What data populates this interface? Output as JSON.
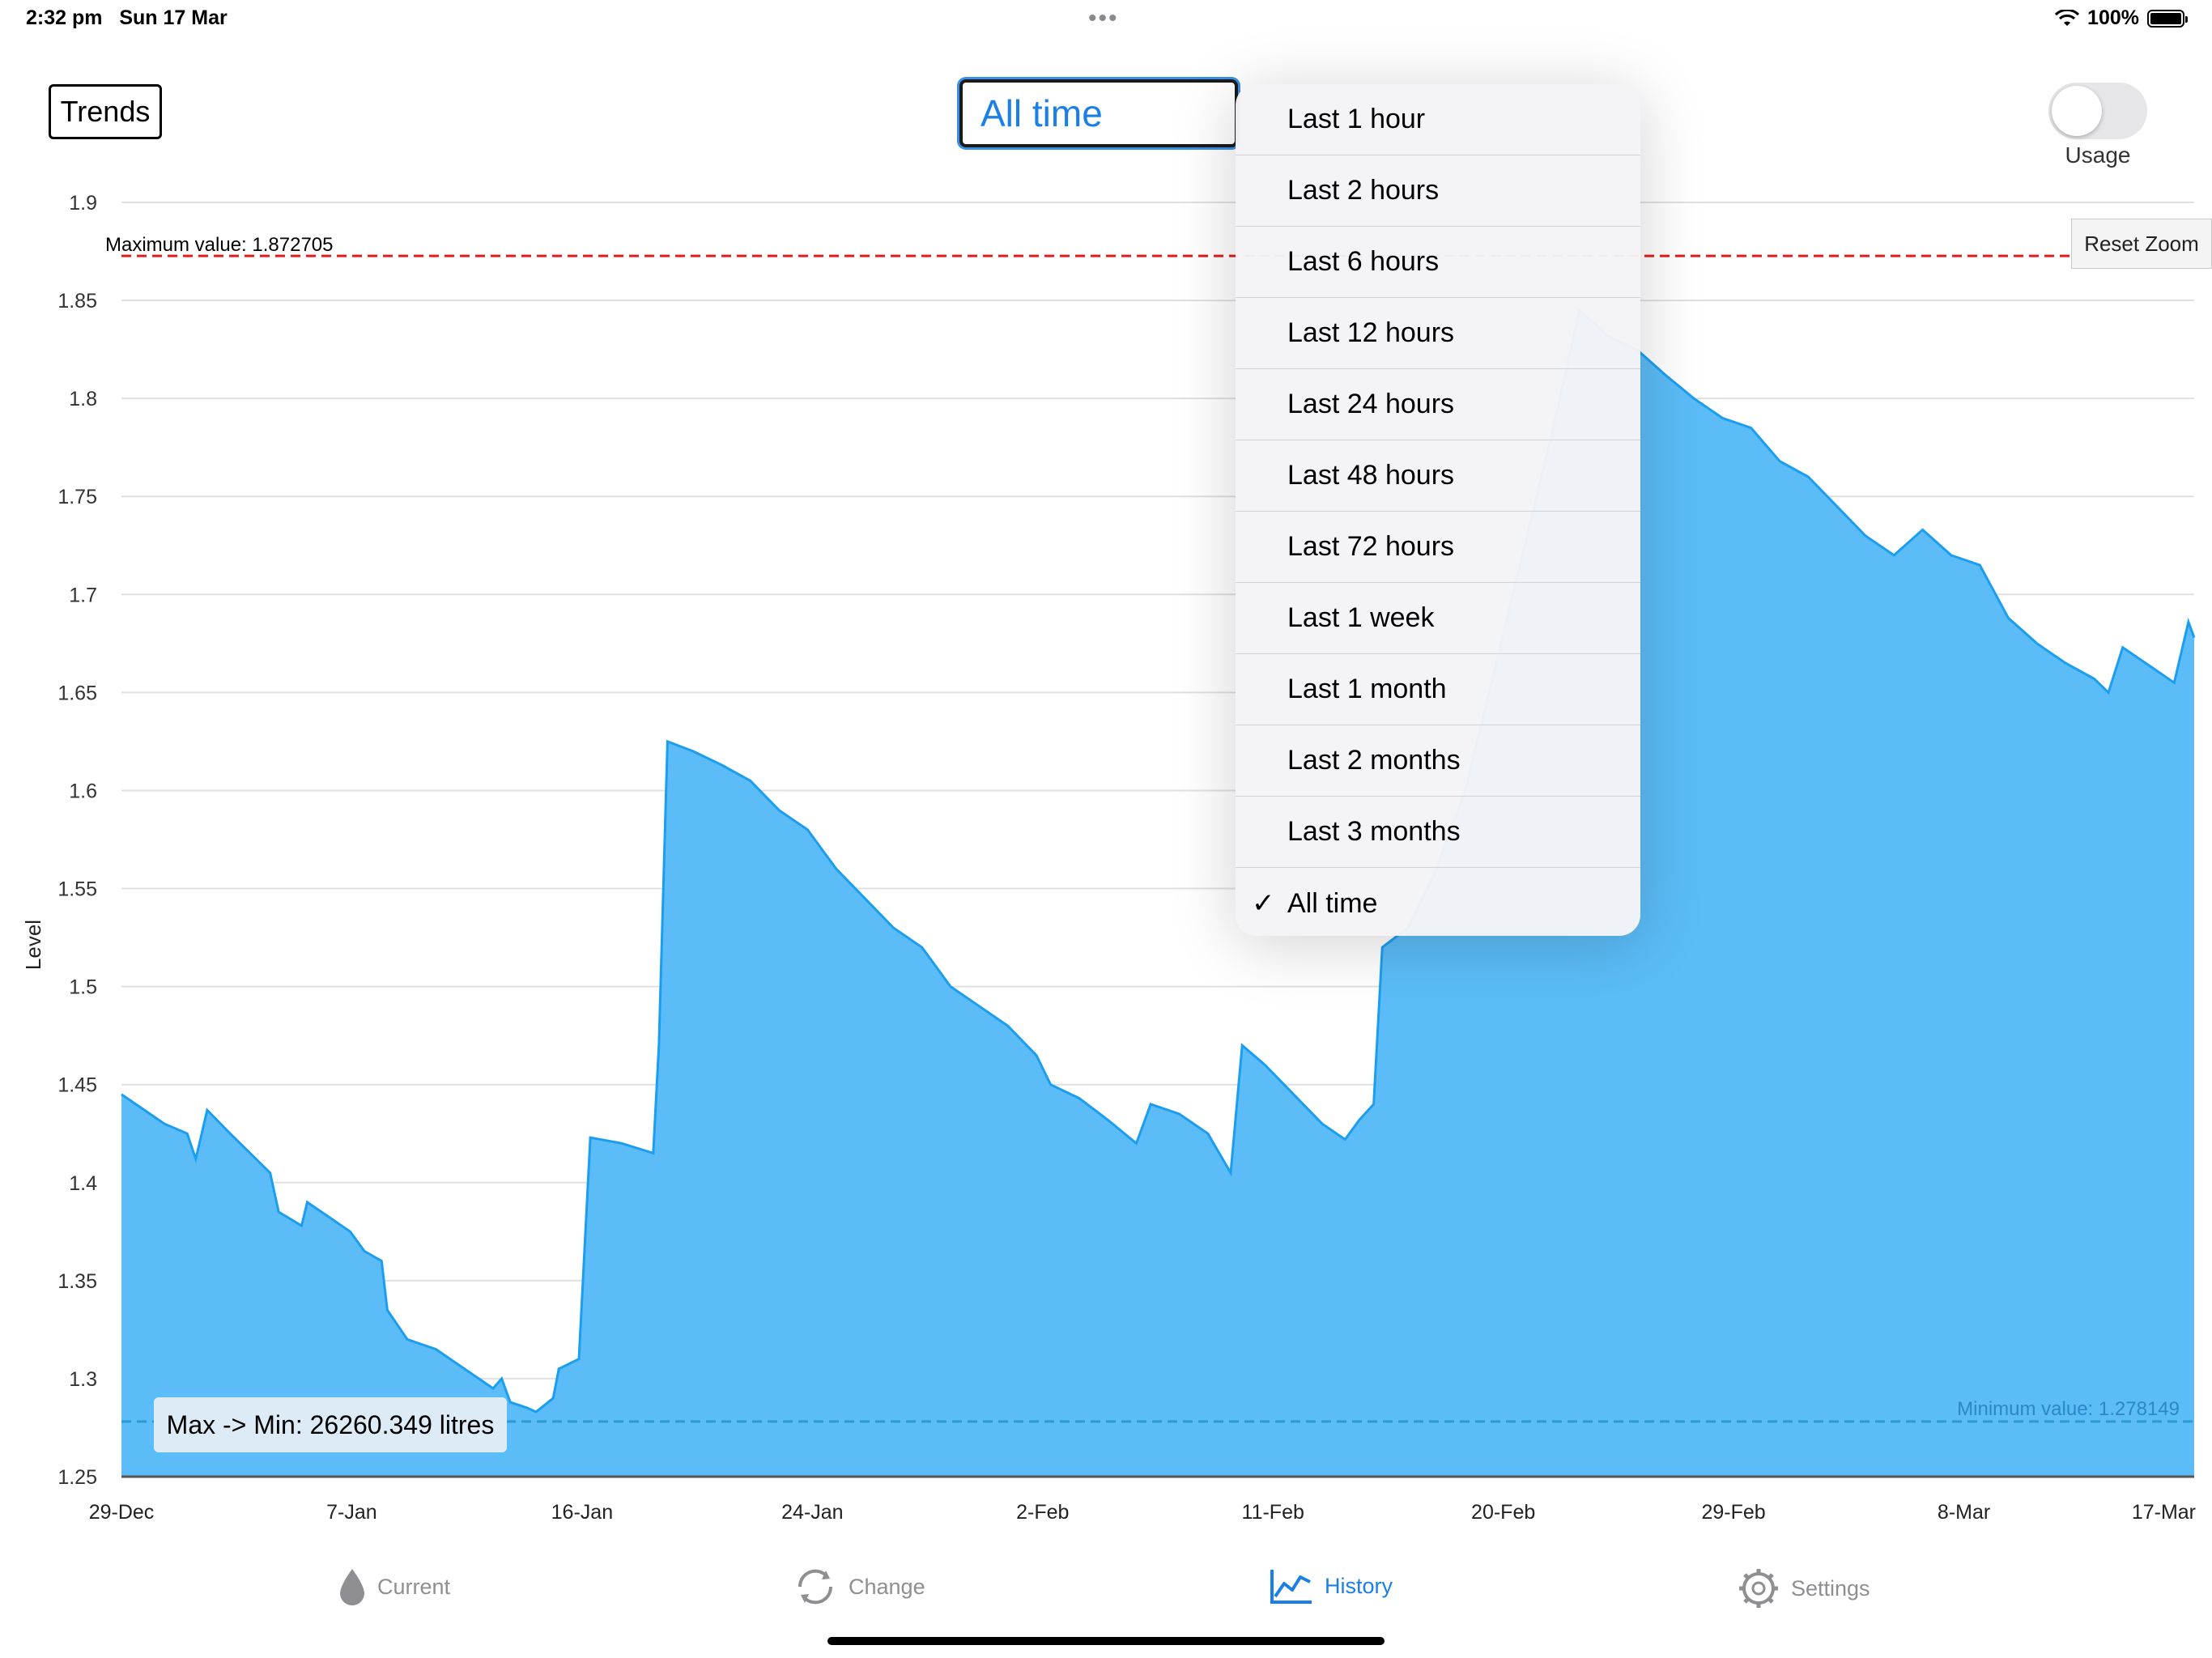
{
  "status_bar": {
    "time": "2:32 pm",
    "date": "Sun 17 Mar",
    "dots": "•••",
    "battery": "100%"
  },
  "header": {
    "trends_label": "Trends",
    "range_selected": "All time",
    "usage_label": "Usage",
    "reset_zoom_label": "Reset Zoom"
  },
  "dropdown": {
    "items": [
      {
        "label": "Last 1 hour",
        "checked": ""
      },
      {
        "label": "Last 2 hours",
        "checked": ""
      },
      {
        "label": "Last 6 hours",
        "checked": ""
      },
      {
        "label": "Last 12 hours",
        "checked": ""
      },
      {
        "label": "Last 24 hours",
        "checked": ""
      },
      {
        "label": "Last 48 hours",
        "checked": ""
      },
      {
        "label": "Last 72 hours",
        "checked": ""
      },
      {
        "label": "Last 1 week",
        "checked": ""
      },
      {
        "label": "Last 1 month",
        "checked": ""
      },
      {
        "label": "Last 2 months",
        "checked": ""
      },
      {
        "label": "Last 3 months",
        "checked": ""
      },
      {
        "label": "All time",
        "checked": "✓"
      }
    ]
  },
  "chart_data": {
    "type": "area",
    "ylabel": "Level",
    "xlabel": "",
    "ylim": [
      1.25,
      1.9
    ],
    "yticks": [
      "1.9",
      "1.85",
      "1.8",
      "1.75",
      "1.7",
      "1.65",
      "1.6",
      "1.55",
      "1.5",
      "1.45",
      "1.4",
      "1.35",
      "1.3",
      "1.25"
    ],
    "xticks": [
      "29-Dec",
      "7-Jan",
      "16-Jan",
      "24-Jan",
      "2-Feb",
      "11-Feb",
      "20-Feb",
      "29-Feb",
      "8-Mar",
      "17-Mar"
    ],
    "max_label": "Maximum value: 1.872705",
    "max_value": 1.872705,
    "min_label": "Minimum value: 1.278149",
    "min_value": 1.278149,
    "color": "#5bbcf7",
    "line_color": "#1b9ef0",
    "series": [
      {
        "x": 0,
        "y": 1.445
      },
      {
        "x": 0.5,
        "y": 1.44
      },
      {
        "x": 1.5,
        "y": 1.43
      },
      {
        "x": 2.3,
        "y": 1.425
      },
      {
        "x": 2.6,
        "y": 1.412
      },
      {
        "x": 3,
        "y": 1.437
      },
      {
        "x": 3.8,
        "y": 1.425
      },
      {
        "x": 4.5,
        "y": 1.415
      },
      {
        "x": 5.2,
        "y": 1.405
      },
      {
        "x": 5.5,
        "y": 1.385
      },
      {
        "x": 6.3,
        "y": 1.378
      },
      {
        "x": 6.5,
        "y": 1.39
      },
      {
        "x": 7.2,
        "y": 1.383
      },
      {
        "x": 8,
        "y": 1.375
      },
      {
        "x": 8.5,
        "y": 1.365
      },
      {
        "x": 9.1,
        "y": 1.36
      },
      {
        "x": 9.3,
        "y": 1.335
      },
      {
        "x": 10,
        "y": 1.32
      },
      {
        "x": 11,
        "y": 1.315
      },
      {
        "x": 12,
        "y": 1.305
      },
      {
        "x": 13,
        "y": 1.295
      },
      {
        "x": 13.3,
        "y": 1.3
      },
      {
        "x": 13.6,
        "y": 1.288
      },
      {
        "x": 14.2,
        "y": 1.285
      },
      {
        "x": 14.5,
        "y": 1.283
      },
      {
        "x": 15.1,
        "y": 1.29
      },
      {
        "x": 15.3,
        "y": 1.305
      },
      {
        "x": 16,
        "y": 1.31
      },
      {
        "x": 16.4,
        "y": 1.423
      },
      {
        "x": 17.5,
        "y": 1.42
      },
      {
        "x": 18.6,
        "y": 1.415
      },
      {
        "x": 18.8,
        "y": 1.47
      },
      {
        "x": 19.1,
        "y": 1.625
      },
      {
        "x": 20,
        "y": 1.62
      },
      {
        "x": 21,
        "y": 1.613
      },
      {
        "x": 22,
        "y": 1.605
      },
      {
        "x": 23,
        "y": 1.59
      },
      {
        "x": 24,
        "y": 1.58
      },
      {
        "x": 25,
        "y": 1.56
      },
      {
        "x": 26,
        "y": 1.545
      },
      {
        "x": 27,
        "y": 1.53
      },
      {
        "x": 28,
        "y": 1.52
      },
      {
        "x": 29,
        "y": 1.5
      },
      {
        "x": 30,
        "y": 1.49
      },
      {
        "x": 31,
        "y": 1.48
      },
      {
        "x": 32,
        "y": 1.465
      },
      {
        "x": 32.5,
        "y": 1.45
      },
      {
        "x": 33.5,
        "y": 1.443
      },
      {
        "x": 34.5,
        "y": 1.432
      },
      {
        "x": 35.5,
        "y": 1.42
      },
      {
        "x": 36,
        "y": 1.44
      },
      {
        "x": 37,
        "y": 1.435
      },
      {
        "x": 38,
        "y": 1.425
      },
      {
        "x": 38.8,
        "y": 1.405
      },
      {
        "x": 39.2,
        "y": 1.47
      },
      {
        "x": 40,
        "y": 1.46
      },
      {
        "x": 41,
        "y": 1.445
      },
      {
        "x": 42,
        "y": 1.43
      },
      {
        "x": 42.8,
        "y": 1.422
      },
      {
        "x": 43.3,
        "y": 1.432
      },
      {
        "x": 43.8,
        "y": 1.44
      },
      {
        "x": 44.1,
        "y": 1.52
      },
      {
        "x": 45,
        "y": 1.53
      },
      {
        "x": 46,
        "y": 1.56
      },
      {
        "x": 47,
        "y": 1.6
      },
      {
        "x": 48,
        "y": 1.66
      },
      {
        "x": 49,
        "y": 1.72
      },
      {
        "x": 50,
        "y": 1.78
      },
      {
        "x": 51,
        "y": 1.845
      },
      {
        "x": 52,
        "y": 1.832
      },
      {
        "x": 53,
        "y": 1.825
      },
      {
        "x": 54,
        "y": 1.812
      },
      {
        "x": 55,
        "y": 1.8
      },
      {
        "x": 56,
        "y": 1.79
      },
      {
        "x": 57,
        "y": 1.785
      },
      {
        "x": 58,
        "y": 1.768
      },
      {
        "x": 59,
        "y": 1.76
      },
      {
        "x": 60,
        "y": 1.745
      },
      {
        "x": 61,
        "y": 1.73
      },
      {
        "x": 62,
        "y": 1.72
      },
      {
        "x": 63,
        "y": 1.733
      },
      {
        "x": 64,
        "y": 1.72
      },
      {
        "x": 65,
        "y": 1.715
      },
      {
        "x": 66,
        "y": 1.688
      },
      {
        "x": 67,
        "y": 1.675
      },
      {
        "x": 68,
        "y": 1.665
      },
      {
        "x": 69,
        "y": 1.657
      },
      {
        "x": 69.5,
        "y": 1.65
      },
      {
        "x": 70,
        "y": 1.673
      },
      {
        "x": 71,
        "y": 1.663
      },
      {
        "x": 71.8,
        "y": 1.655
      },
      {
        "x": 72.3,
        "y": 1.686
      },
      {
        "x": 72.5,
        "y": 1.678
      }
    ],
    "x_max": 72.5,
    "annotation": "Max -> Min: 26260.349 litres"
  },
  "tabbar": {
    "current": "Current",
    "change": "Change",
    "history": "History",
    "settings": "Settings"
  }
}
